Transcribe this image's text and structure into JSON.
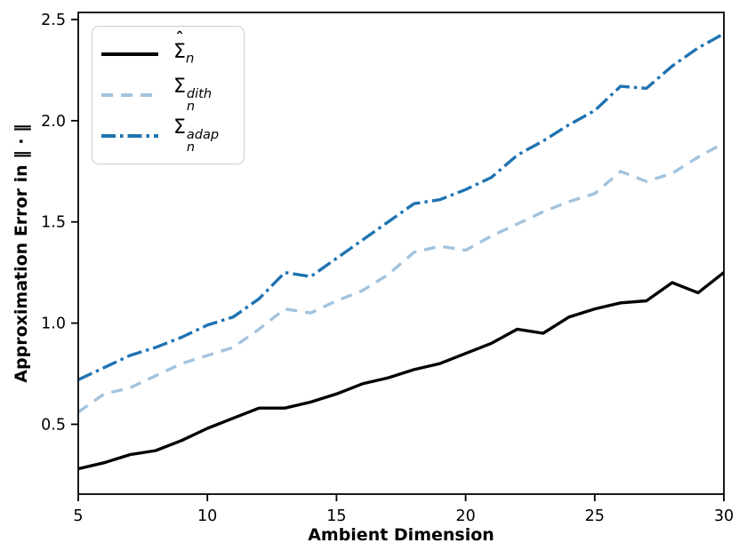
{
  "figure": {
    "background_color": "#ffffff",
    "axis_color": "#000000"
  },
  "chart_data": {
    "type": "line",
    "title": "",
    "xlabel": "Ambient Dimension",
    "ylabel": "Approximation Error in ‖ · ‖",
    "grid": false,
    "legend_position": "upper-left",
    "xlim": [
      5,
      30
    ],
    "ylim": [
      0.155,
      2.535
    ],
    "x_ticks": [
      5,
      10,
      15,
      20,
      25,
      30
    ],
    "x_tick_labels": [
      "5",
      "10",
      "15",
      "20",
      "25",
      "30"
    ],
    "y_ticks": [
      0.5,
      1.0,
      1.5,
      2.0,
      2.5
    ],
    "y_tick_labels": [
      "0.5",
      "1.0",
      "1.5",
      "2.0",
      "2.5"
    ],
    "x": [
      5,
      6,
      7,
      8,
      9,
      10,
      11,
      12,
      13,
      14,
      15,
      16,
      17,
      18,
      19,
      20,
      21,
      22,
      23,
      24,
      25,
      26,
      27,
      28,
      29,
      30
    ],
    "series": [
      {
        "name": "sigma-hat-n",
        "label": "Σ̂_n",
        "color": "#000000",
        "style": "solid",
        "values": [
          0.28,
          0.31,
          0.35,
          0.37,
          0.42,
          0.48,
          0.53,
          0.58,
          0.58,
          0.61,
          0.65,
          0.7,
          0.73,
          0.77,
          0.8,
          0.85,
          0.9,
          0.97,
          0.95,
          1.03,
          1.07,
          1.1,
          1.11,
          1.2,
          1.15,
          1.25
        ]
      },
      {
        "name": "sigma-n-dith",
        "label": "Σ_n^dith",
        "color": "#a3c3dd",
        "style": "dashed",
        "values": [
          0.56,
          0.65,
          0.68,
          0.74,
          0.8,
          0.84,
          0.88,
          0.97,
          1.07,
          1.05,
          1.11,
          1.16,
          1.24,
          1.35,
          1.38,
          1.36,
          1.43,
          1.49,
          1.55,
          1.6,
          1.64,
          1.75,
          1.7,
          1.74,
          1.82,
          1.89
        ]
      },
      {
        "name": "sigma-n-adap",
        "label": "Σ_n^adap",
        "color": "#1f73b1",
        "style": "dashdot",
        "values": [
          0.72,
          0.78,
          0.84,
          0.88,
          0.93,
          0.99,
          1.03,
          1.12,
          1.25,
          1.23,
          1.32,
          1.41,
          1.5,
          1.59,
          1.61,
          1.66,
          1.72,
          1.83,
          1.9,
          1.98,
          2.05,
          2.17,
          2.16,
          2.27,
          2.36,
          2.43
        ]
      }
    ]
  },
  "legend": {
    "entries": [
      {
        "hat": "ˆ",
        "base": "Σ",
        "sub": "n",
        "sup": ""
      },
      {
        "hat": "",
        "base": "Σ",
        "sub": "n",
        "sup": "dith"
      },
      {
        "hat": "",
        "base": "Σ",
        "sub": "n",
        "sup": "adap"
      }
    ]
  }
}
